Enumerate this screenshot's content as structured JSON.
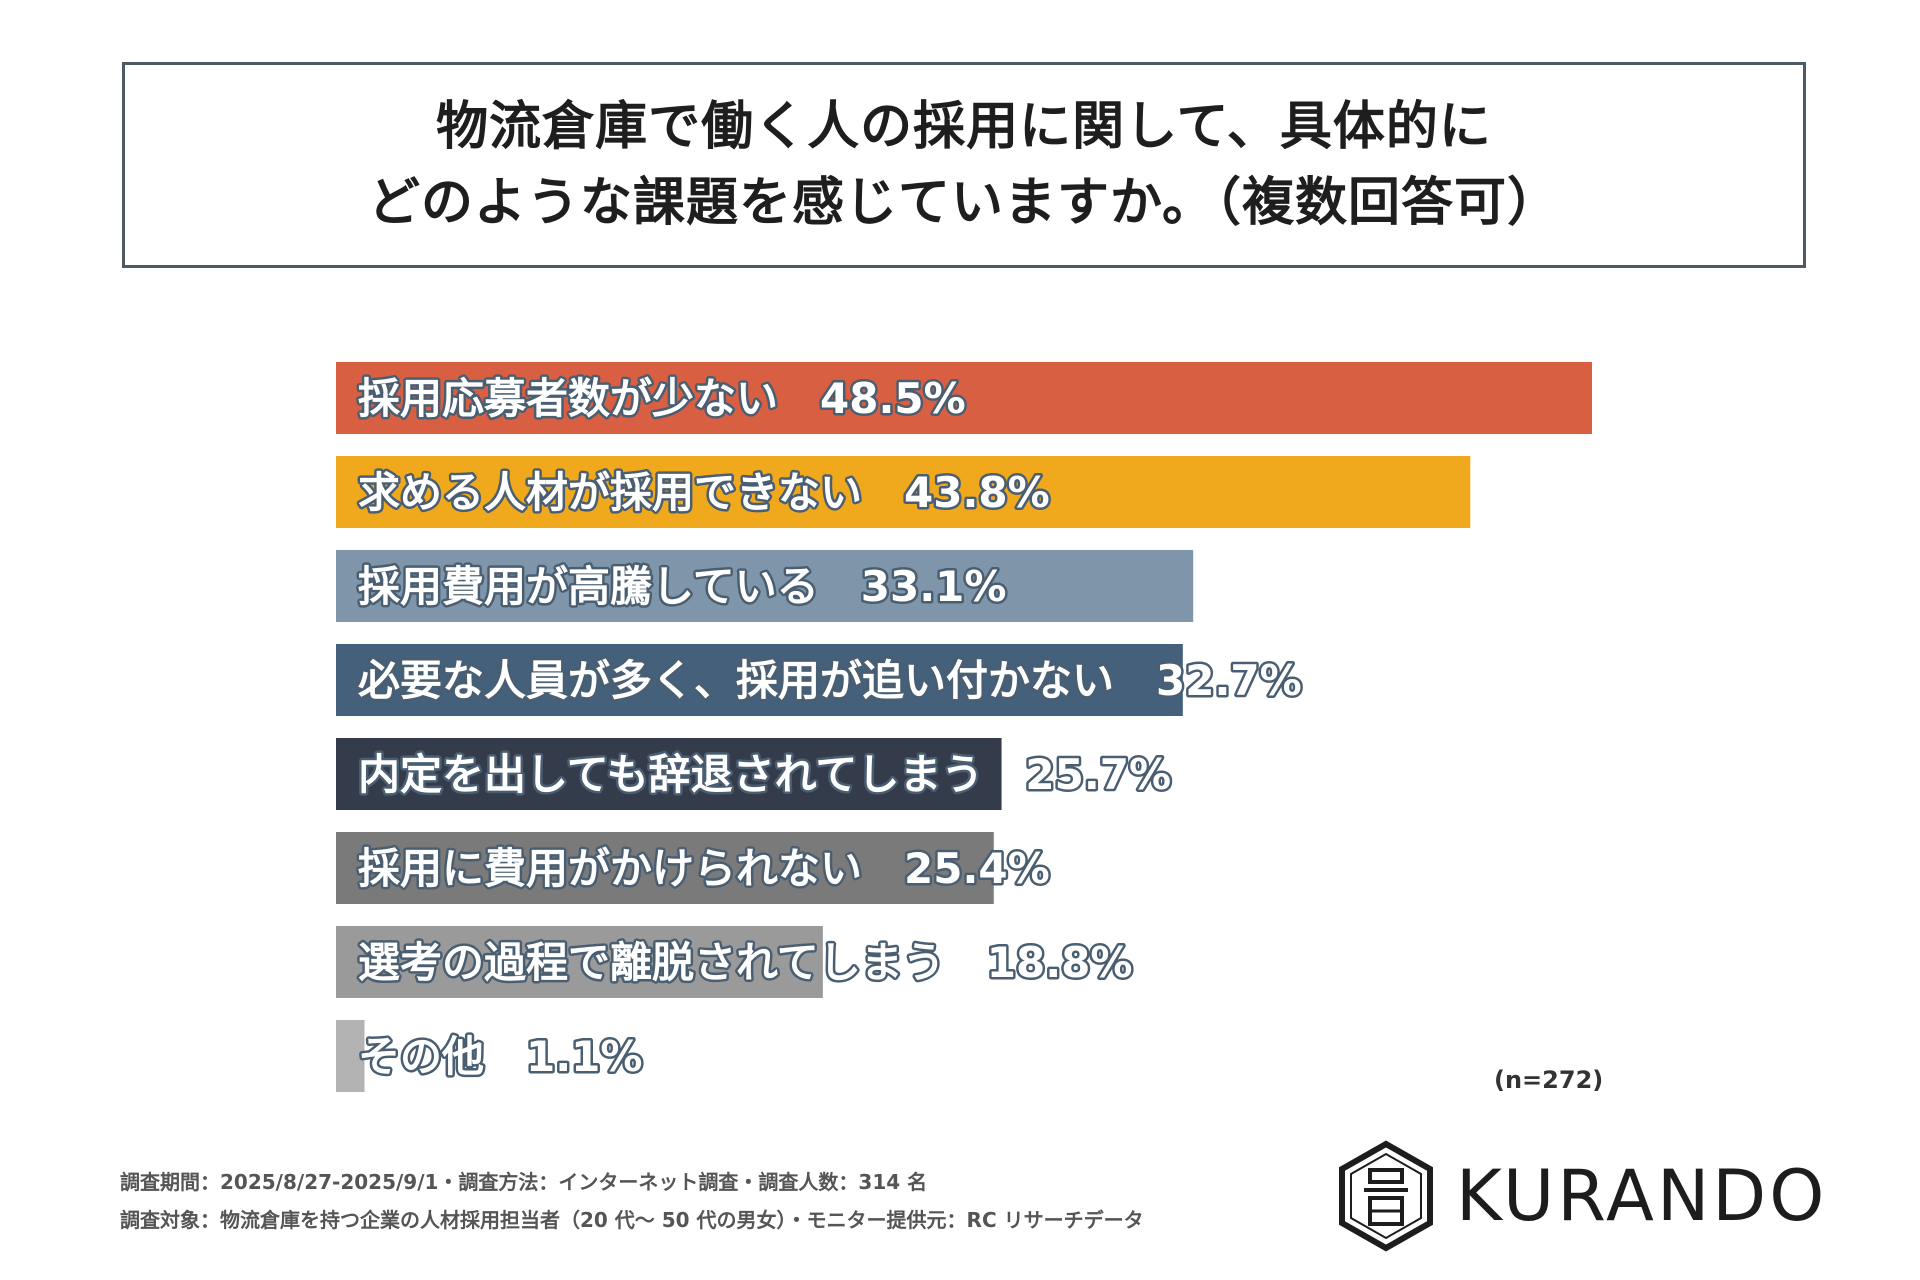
{
  "title": {
    "line1": "物流倉庫で働く人の採用に関して、具体的に",
    "line2": "どのような課題を感じていますか。（複数回答可）"
  },
  "chart_data": {
    "type": "bar",
    "orientation": "horizontal",
    "categories": [
      "採用応募者数が少ない",
      "求める人材が採用できない",
      "採用費用が高騰している",
      "必要な人員が多く、採用が追い付かない",
      "内定を出しても辞退されてしまう",
      "採用に費用がかけられない",
      "選考の過程で離脱されてしまう",
      "その他"
    ],
    "values": [
      48.5,
      43.8,
      33.1,
      32.7,
      25.7,
      25.4,
      18.8,
      1.1
    ],
    "value_labels": [
      "48.5%",
      "43.8%",
      "33.1%",
      "32.7%",
      "25.7%",
      "25.4%",
      "18.8%",
      "1.1%"
    ],
    "colors": [
      "#d95f43",
      "#f0a81d",
      "#7f95aa",
      "#44607a",
      "#343c4b",
      "#7a7a7a",
      "#9a9a9a",
      "#b3b3b3"
    ],
    "xlim": [
      0,
      48.5
    ],
    "sample_size": "(n=272)"
  },
  "footnotes": {
    "line1": "調査期間：2025/8/27-2025/9/1・調査方法：インターネット調査・調査人数：314 名",
    "line2": "調査対象：物流倉庫を持つ企業の人材採用担当者（20 代～ 50 代の男女）・モニター提供元：RC リサーチデータ"
  },
  "logo": {
    "text": "KURANDO",
    "icon": "kurando-hexagon-logo-icon"
  }
}
